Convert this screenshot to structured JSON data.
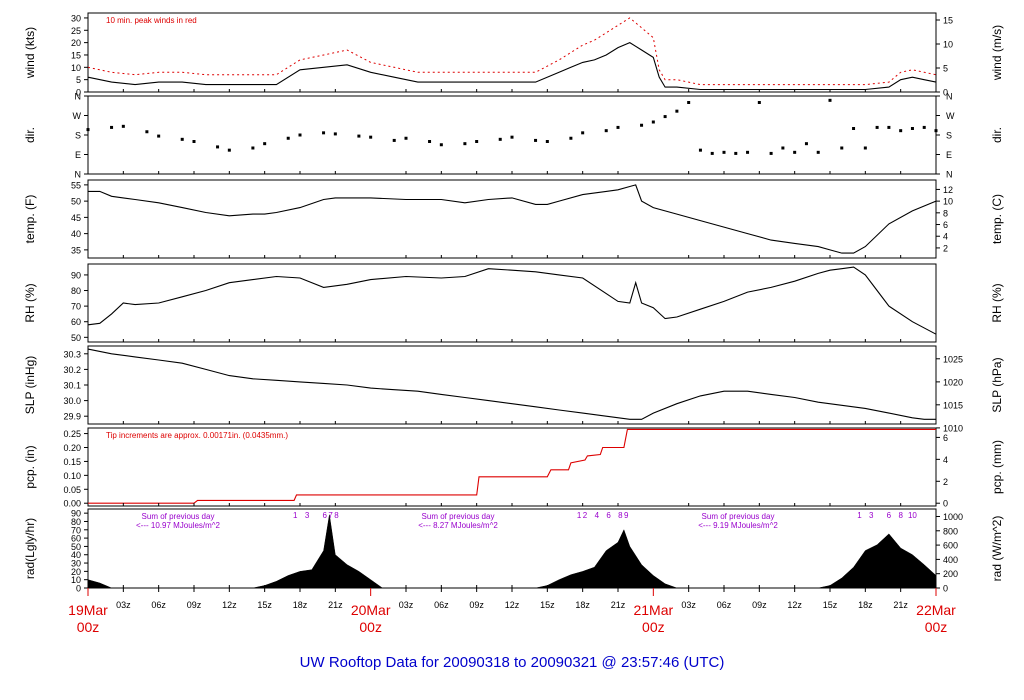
{
  "title": "UW Rooftop Data for 20090318  to  20090321 @ 23:57:46  (UTC)",
  "colors": {
    "red": "#dd0000",
    "purple": "#9900cc",
    "blue": "#0000cc",
    "black": "#000000"
  },
  "time_axis": {
    "hour_ticks": [
      "03z",
      "06z",
      "09z",
      "12z",
      "15z",
      "18z",
      "21z"
    ],
    "day_labels": [
      {
        "date": "19Mar",
        "time": "00z",
        "hour": 0
      },
      {
        "date": "20Mar",
        "time": "00z",
        "hour": 24
      },
      {
        "date": "21Mar",
        "time": "00z",
        "hour": 48
      },
      {
        "date": "22Mar",
        "time": "00z",
        "hour": 72
      }
    ],
    "range_hours": [
      0,
      72
    ]
  },
  "chart_data": [
    {
      "id": "wind",
      "type": "line",
      "ylabel": "wind (kts)",
      "ylabel_right": "wind (m/s)",
      "ylim": [
        0,
        32
      ],
      "yticks": [
        0,
        5,
        10,
        15,
        20,
        25,
        30
      ],
      "right_ticks": [
        {
          "v": 0,
          "t": "0"
        },
        {
          "v": 9.72,
          "t": "5"
        },
        {
          "v": 19.44,
          "t": "10"
        },
        {
          "v": 29.16,
          "t": "15"
        }
      ],
      "annotation": "10 min. peak winds in red",
      "series": [
        {
          "hours": [
            0,
            2,
            4,
            6,
            8,
            10,
            12,
            14,
            16,
            18,
            20,
            22,
            24,
            26,
            28,
            30,
            32,
            34,
            36,
            38,
            40,
            41,
            42,
            43,
            44,
            45,
            46,
            47,
            48,
            48.5,
            49,
            50,
            52,
            54,
            56,
            58,
            60,
            62,
            64,
            66,
            68,
            69,
            70,
            71,
            72
          ],
          "values": [
            6,
            4,
            3,
            4,
            4,
            3,
            3,
            3,
            3,
            9,
            10,
            11,
            8,
            6,
            4,
            4,
            4,
            4,
            4,
            4,
            8,
            10,
            12,
            13,
            15,
            18,
            20,
            17,
            14,
            6,
            2,
            2,
            1,
            1,
            1,
            1,
            1,
            1,
            1,
            1,
            2,
            5,
            6,
            5,
            4
          ]
        },
        {
          "hours": [
            0,
            2,
            4,
            6,
            8,
            10,
            12,
            14,
            16,
            18,
            20,
            22,
            24,
            26,
            28,
            30,
            32,
            34,
            36,
            38,
            40,
            41,
            42,
            43,
            44,
            45,
            46,
            47,
            48,
            48.5,
            49,
            50,
            52,
            54,
            56,
            58,
            60,
            62,
            64,
            66,
            68,
            69,
            70,
            71,
            72
          ],
          "values": [
            10,
            8,
            7,
            8,
            8,
            7,
            7,
            7,
            7,
            13,
            15,
            17,
            12,
            10,
            8,
            8,
            8,
            8,
            8,
            8,
            13,
            16,
            19,
            21,
            24,
            27,
            30,
            26,
            22,
            9,
            5,
            5,
            3,
            3,
            3,
            3,
            3,
            3,
            3,
            3,
            4,
            8,
            9,
            8,
            7
          ]
        }
      ]
    },
    {
      "id": "dir",
      "type": "scatter",
      "ylabel": "dir.",
      "ylabel_right": "dir.",
      "ylim": [
        0,
        360
      ],
      "yticks": [
        {
          "v": 0,
          "t": "N"
        },
        {
          "v": 90,
          "t": "E"
        },
        {
          "v": 180,
          "t": "S"
        },
        {
          "v": 270,
          "t": "W"
        },
        {
          "v": 360,
          "t": "N"
        }
      ],
      "series": [
        {
          "hours": [
            0,
            2,
            3,
            5,
            6,
            8,
            9,
            11,
            12,
            14,
            15,
            17,
            18,
            20,
            21,
            23,
            24,
            26,
            27,
            29,
            30,
            32,
            33,
            35,
            36,
            38,
            39,
            41,
            42,
            44,
            45,
            47,
            48,
            49,
            50,
            51,
            52,
            53,
            54,
            55,
            56,
            57,
            58,
            59,
            60,
            61,
            62,
            63,
            64,
            65,
            66,
            67,
            68,
            69,
            70,
            71,
            72
          ],
          "values": [
            205,
            215,
            220,
            195,
            175,
            160,
            150,
            125,
            110,
            120,
            140,
            165,
            180,
            190,
            185,
            175,
            170,
            155,
            165,
            150,
            135,
            140,
            150,
            160,
            170,
            155,
            150,
            165,
            190,
            200,
            215,
            225,
            240,
            265,
            290,
            330,
            110,
            95,
            100,
            95,
            100,
            330,
            95,
            120,
            100,
            140,
            100,
            340,
            120,
            210,
            120,
            215,
            215,
            200,
            210,
            215,
            200
          ]
        }
      ]
    },
    {
      "id": "temp",
      "type": "line",
      "ylabel": "temp. (F)",
      "ylabel_right": "temp. (C)",
      "ylim": [
        32.5,
        56.5
      ],
      "yticks": [
        35,
        40,
        45,
        50,
        55
      ],
      "right_ticks": [
        {
          "v": 35.6,
          "t": "2"
        },
        {
          "v": 39.2,
          "t": "4"
        },
        {
          "v": 42.8,
          "t": "6"
        },
        {
          "v": 46.4,
          "t": "8"
        },
        {
          "v": 50,
          "t": "10"
        },
        {
          "v": 53.6,
          "t": "12"
        }
      ],
      "series": [
        {
          "hours": [
            0,
            1,
            2,
            3,
            4,
            6,
            8,
            10,
            12,
            14,
            15,
            16,
            18,
            20,
            21,
            24,
            27,
            30,
            32,
            34,
            36,
            38,
            39,
            40,
            42,
            44,
            45,
            46,
            46.5,
            47,
            48,
            50,
            52,
            54,
            56,
            58,
            60,
            62,
            63,
            64,
            65,
            66,
            68,
            70,
            72
          ],
          "values": [
            53,
            53,
            51.5,
            51,
            50.5,
            49.5,
            48,
            46.5,
            45.5,
            46,
            46,
            46.5,
            48,
            50.5,
            51,
            51,
            50.5,
            50.5,
            49.5,
            50.5,
            51,
            49,
            49,
            50,
            52,
            53,
            53.5,
            54.5,
            55,
            50,
            48,
            46,
            44,
            42,
            40,
            38,
            37,
            36,
            35,
            34,
            34,
            36,
            43,
            47,
            50
          ]
        }
      ]
    },
    {
      "id": "rh",
      "type": "line",
      "ylabel": "RH (%)",
      "ylabel_right": "RH (%)",
      "ylim": [
        47,
        97
      ],
      "yticks": [
        50,
        60,
        70,
        80,
        90
      ],
      "series": [
        {
          "hours": [
            0,
            1,
            2,
            3,
            4,
            6,
            8,
            10,
            12,
            14,
            16,
            18,
            20,
            22,
            24,
            27,
            30,
            32,
            34,
            36,
            38,
            40,
            42,
            44,
            45,
            46,
            46.5,
            47,
            48,
            49,
            50,
            52,
            54,
            56,
            58,
            60,
            62,
            63,
            64,
            65,
            66,
            67,
            68,
            70,
            72
          ],
          "values": [
            58,
            59,
            65,
            72,
            71,
            72,
            76,
            80,
            85,
            87,
            89,
            88,
            82,
            84,
            87,
            89,
            88,
            89,
            94,
            93,
            92,
            90,
            88,
            78,
            73,
            72,
            85,
            72,
            69,
            62,
            63,
            68,
            73,
            79,
            82,
            86,
            91,
            93,
            94,
            95,
            90,
            80,
            70,
            60,
            52
          ]
        }
      ]
    },
    {
      "id": "slp",
      "type": "line",
      "ylabel": "SLP (inHg)",
      "ylabel_right": "SLP (hPa)",
      "ylim": [
        29.85,
        30.35
      ],
      "yticks": [
        "29.9",
        "30.0",
        "30.1",
        "30.2",
        "30.3"
      ],
      "right_ticks": [
        {
          "v": 29.825,
          "t": "1010"
        },
        {
          "v": 29.973,
          "t": "1015"
        },
        {
          "v": 30.12,
          "t": "1020"
        },
        {
          "v": 30.268,
          "t": "1025"
        }
      ],
      "series": [
        {
          "hours": [
            0,
            2,
            4,
            6,
            8,
            10,
            12,
            14,
            16,
            18,
            20,
            22,
            24,
            26,
            28,
            30,
            32,
            34,
            36,
            38,
            40,
            42,
            44,
            46,
            47,
            48,
            50,
            52,
            54,
            56,
            58,
            60,
            62,
            64,
            66,
            68,
            70,
            71,
            72
          ],
          "values": [
            30.33,
            30.3,
            30.28,
            30.26,
            30.24,
            30.2,
            30.16,
            30.14,
            30.13,
            30.12,
            30.11,
            30.1,
            30.08,
            30.07,
            30.06,
            30.04,
            30.02,
            30.0,
            29.98,
            29.96,
            29.94,
            29.92,
            29.9,
            29.88,
            29.88,
            29.92,
            29.98,
            30.03,
            30.06,
            30.06,
            30.04,
            30.02,
            29.99,
            29.97,
            29.95,
            29.92,
            29.89,
            29.88,
            29.88
          ]
        }
      ]
    },
    {
      "id": "pcp",
      "type": "line",
      "ylabel": "pcp. (in)",
      "ylabel_right": "pcp. (mm)",
      "ylim": [
        -0.01,
        0.27
      ],
      "yticks": [
        "0.00",
        "0.05",
        "0.10",
        "0.15",
        "0.20",
        "0.25"
      ],
      "right_ticks": [
        {
          "v": 0,
          "t": "0"
        },
        {
          "v": 0.0787,
          "t": "2"
        },
        {
          "v": 0.1575,
          "t": "4"
        },
        {
          "v": 0.2362,
          "t": "6"
        }
      ],
      "annotation": "Tip increments are approx. 0.00171in. (0.0435mm.)",
      "series": [
        {
          "hours": [
            0,
            9,
            9.3,
            17.5,
            17.7,
            33,
            33.2,
            39,
            39.3,
            40.8,
            41,
            42.2,
            42.4,
            43.5,
            43.7,
            45.5,
            45.8,
            48.5,
            72
          ],
          "values": [
            0,
            0,
            0.01,
            0.01,
            0.03,
            0.03,
            0.095,
            0.095,
            0.12,
            0.12,
            0.145,
            0.155,
            0.17,
            0.175,
            0.2,
            0.2,
            0.265,
            0.265,
            0.265
          ]
        }
      ]
    },
    {
      "id": "rad",
      "type": "area",
      "ylabel": "rad(Lgly/hr)",
      "ylabel_right": "rad (W/m^2)",
      "ylim": [
        0,
        95
      ],
      "yticks": [
        0,
        10,
        20,
        30,
        40,
        50,
        60,
        70,
        80,
        90
      ],
      "right_ticks": [
        {
          "v": 0,
          "t": "0"
        },
        {
          "v": 17.2,
          "t": "200"
        },
        {
          "v": 34.4,
          "t": "400"
        },
        {
          "v": 51.6,
          "t": "600"
        },
        {
          "v": 68.8,
          "t": "800"
        },
        {
          "v": 86,
          "t": "1000"
        }
      ],
      "annotations": [
        {
          "line1": "Sum of previous day",
          "line2": "<--- 10.97 MJoules/m^2"
        },
        {
          "line1": "Sum of previous day",
          "line2": "<--- 8.27 MJoules/m^2"
        },
        {
          "line1": "Sum of previous day",
          "line2": "<--- 9.19 MJoules/m^2"
        }
      ],
      "hour_marks": [
        {
          "start": 17.6,
          "labels": [
            "1",
            "3",
            "6",
            "7",
            "8"
          ]
        },
        {
          "start": 41.7,
          "labels": [
            "1",
            "2",
            "4",
            "6",
            "8",
            "9"
          ]
        },
        {
          "start": 65.5,
          "labels": [
            "1",
            "3",
            "6",
            "8",
            "10"
          ]
        }
      ],
      "series": [
        {
          "hours": [
            0,
            1,
            2,
            14,
            15,
            16,
            17,
            18,
            19,
            20,
            20.5,
            21,
            22,
            23,
            24,
            25,
            38,
            39,
            40,
            41,
            42,
            43,
            44,
            45,
            45.5,
            46,
            47,
            48,
            49,
            50,
            62,
            63,
            64,
            65,
            66,
            67,
            68,
            69,
            70,
            71,
            72
          ],
          "values": [
            10,
            6,
            0,
            0,
            3,
            8,
            15,
            20,
            22,
            45,
            88,
            40,
            28,
            20,
            10,
            0,
            0,
            3,
            10,
            16,
            20,
            25,
            45,
            55,
            70,
            50,
            28,
            15,
            5,
            0,
            0,
            3,
            12,
            25,
            45,
            52,
            65,
            48,
            40,
            28,
            15
          ]
        }
      ]
    }
  ]
}
